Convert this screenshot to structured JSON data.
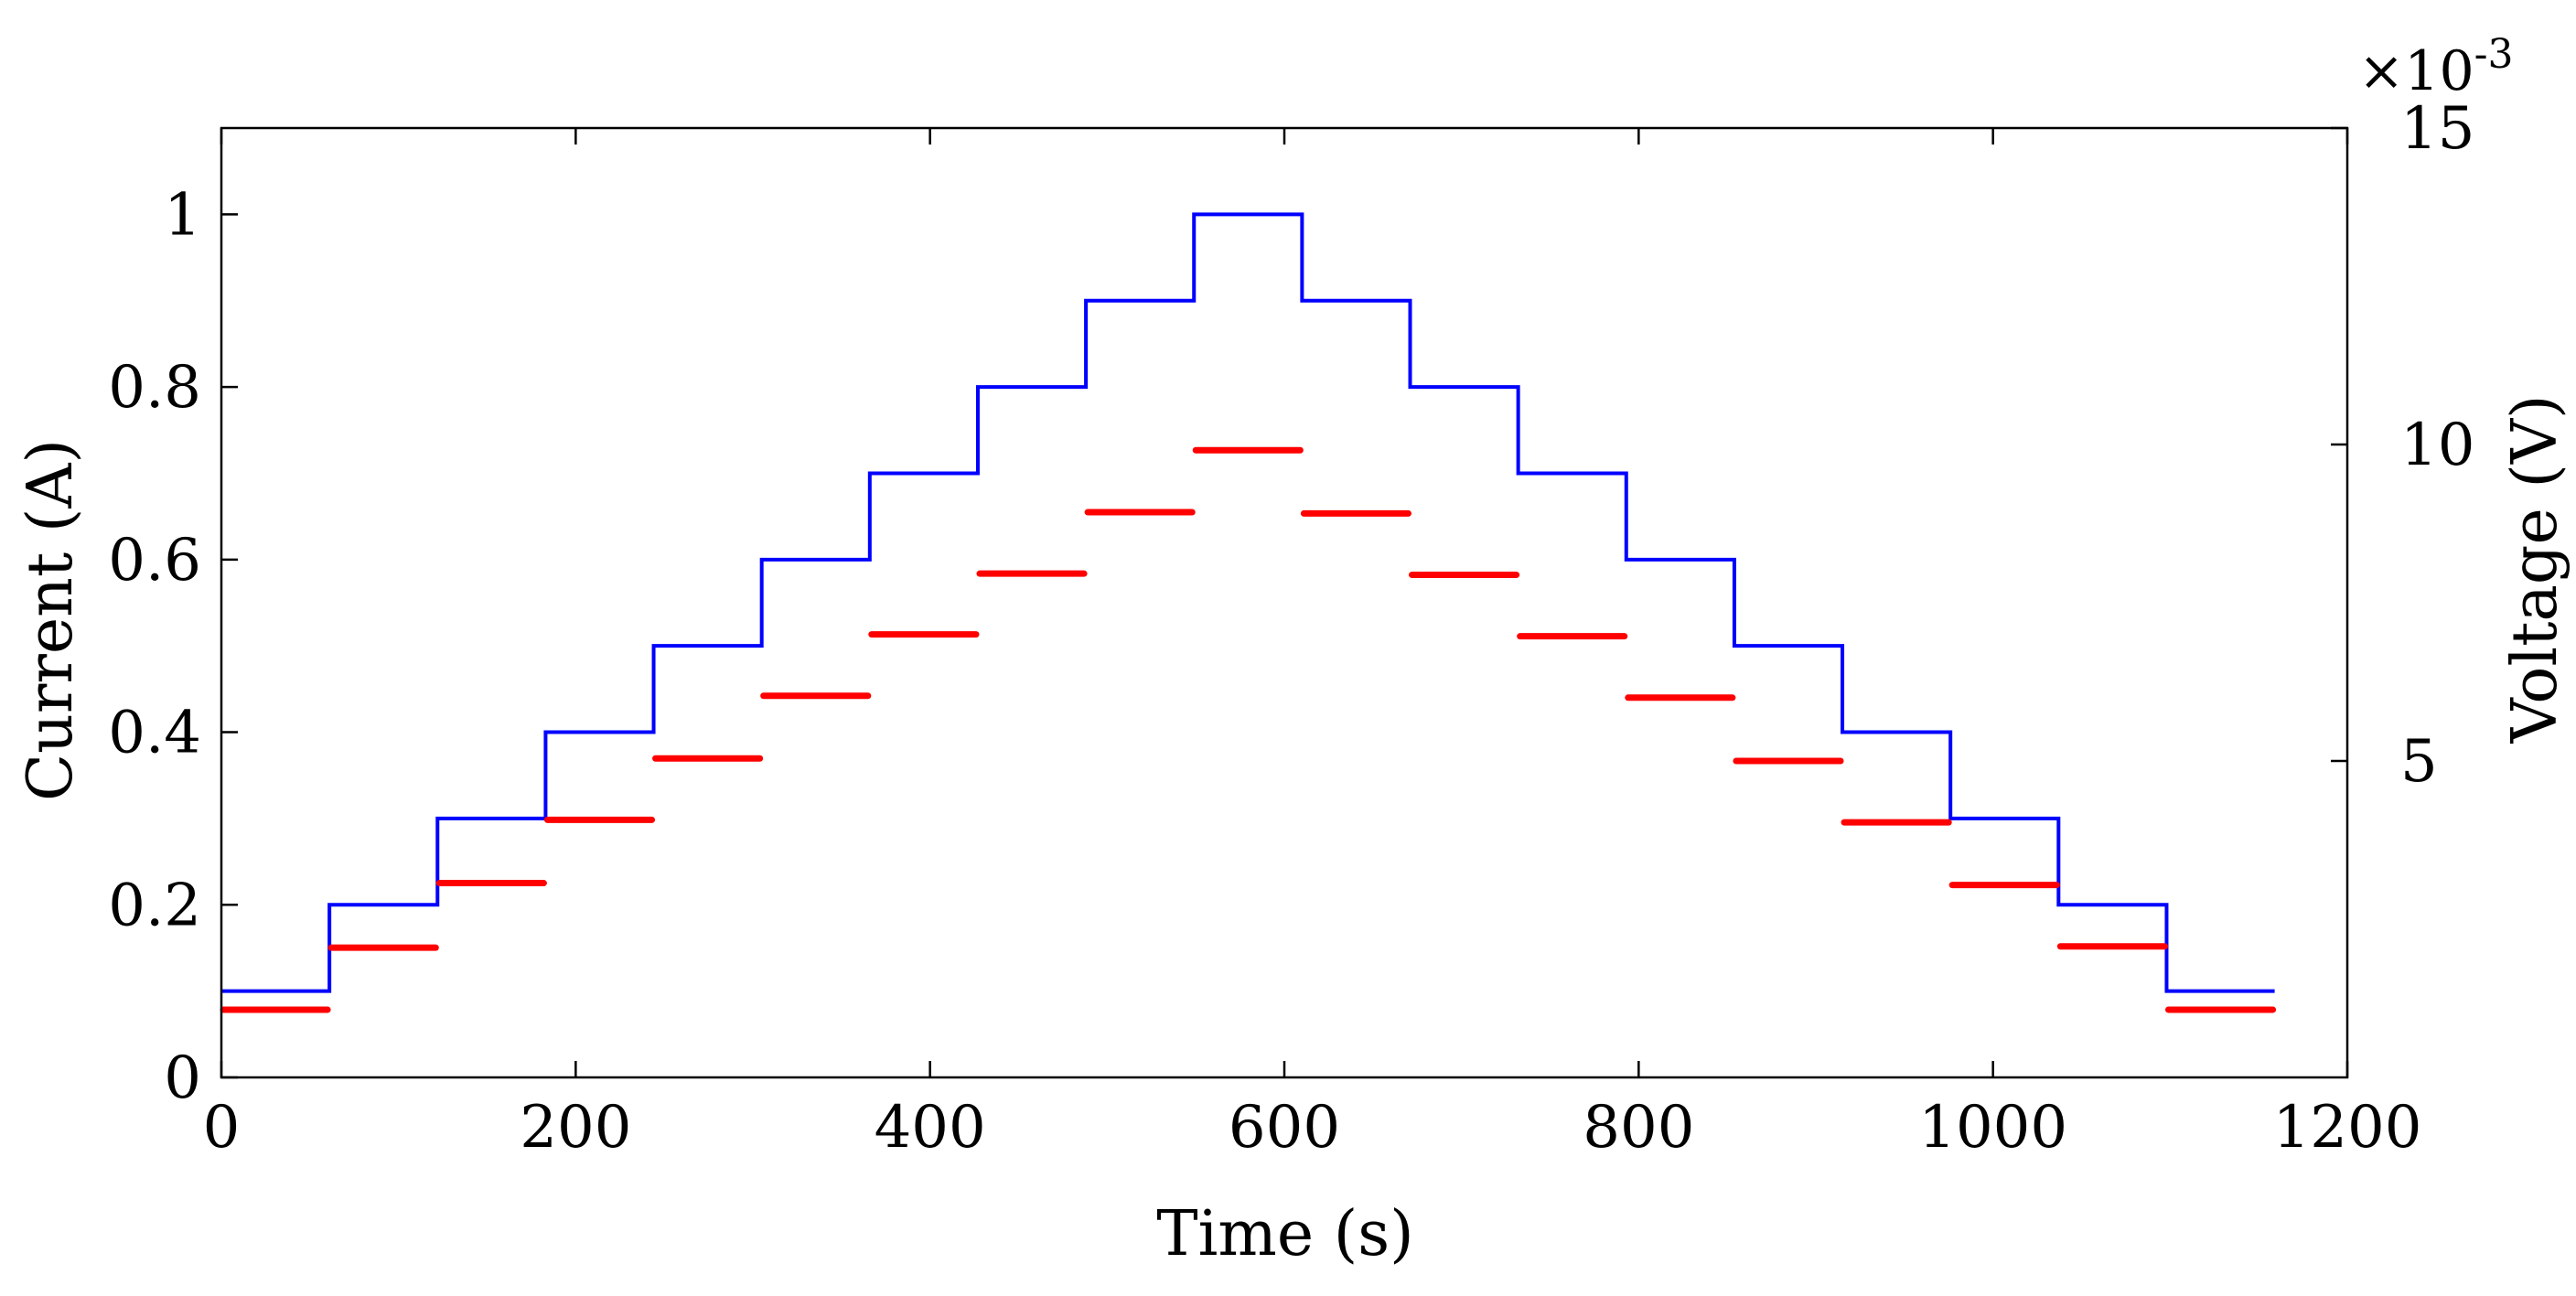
{
  "chart_data": {
    "type": "line",
    "xlabel": "Time (s)",
    "ylabel": "Current (A)",
    "y2label": "Voltage (V)",
    "y2_exponent": "×10-3",
    "x_ticks": [
      "0",
      "200",
      "400",
      "600",
      "800",
      "1000",
      "1200"
    ],
    "y_ticks": [
      "0",
      "0.2",
      "0.4",
      "0.6",
      "0.8",
      "1"
    ],
    "y2_ticks": [
      "5",
      "10",
      "15"
    ],
    "xlim": [
      0,
      1200
    ],
    "ylim": [
      0,
      1.1
    ],
    "y2lim": [
      0,
      15
    ],
    "y2_scale_factor": 0.001,
    "grid": false,
    "colors": {
      "current": "#0000ff",
      "voltage": "#ff0000"
    },
    "series": [
      {
        "axis": "left",
        "style": "step",
        "segments": [
          {
            "x0": 0,
            "x1": 61,
            "y": 0.1
          },
          {
            "x0": 61,
            "x1": 122,
            "y": 0.2
          },
          {
            "x0": 122,
            "x1": 183,
            "y": 0.3
          },
          {
            "x0": 183,
            "x1": 244,
            "y": 0.4
          },
          {
            "x0": 244,
            "x1": 305,
            "y": 0.5
          },
          {
            "x0": 305,
            "x1": 366,
            "y": 0.6
          },
          {
            "x0": 366,
            "x1": 427,
            "y": 0.7
          },
          {
            "x0": 427,
            "x1": 488,
            "y": 0.8
          },
          {
            "x0": 488,
            "x1": 549,
            "y": 0.9
          },
          {
            "x0": 549,
            "x1": 610,
            "y": 1.0
          },
          {
            "x0": 610,
            "x1": 671,
            "y": 0.9
          },
          {
            "x0": 671,
            "x1": 732,
            "y": 0.8
          },
          {
            "x0": 732,
            "x1": 793,
            "y": 0.7
          },
          {
            "x0": 793,
            "x1": 854,
            "y": 0.6
          },
          {
            "x0": 854,
            "x1": 915,
            "y": 0.5
          },
          {
            "x0": 915,
            "x1": 976,
            "y": 0.4
          },
          {
            "x0": 976,
            "x1": 1037,
            "y": 0.3
          },
          {
            "x0": 1037,
            "x1": 1098,
            "y": 0.2
          },
          {
            "x0": 1098,
            "x1": 1159,
            "y": 0.1
          }
        ]
      },
      {
        "axis": "right",
        "style": "segments",
        "segments": [
          {
            "x0": 0,
            "x1": 61,
            "y": 1.07
          },
          {
            "x0": 61,
            "x1": 122,
            "y": 2.05
          },
          {
            "x0": 122,
            "x1": 183,
            "y": 3.07
          },
          {
            "x0": 183,
            "x1": 244,
            "y": 4.07
          },
          {
            "x0": 244,
            "x1": 305,
            "y": 5.04
          },
          {
            "x0": 305,
            "x1": 366,
            "y": 6.03
          },
          {
            "x0": 366,
            "x1": 427,
            "y": 7.0
          },
          {
            "x0": 427,
            "x1": 488,
            "y": 7.96
          },
          {
            "x0": 488,
            "x1": 549,
            "y": 8.93
          },
          {
            "x0": 549,
            "x1": 610,
            "y": 9.91
          },
          {
            "x0": 610,
            "x1": 671,
            "y": 8.91
          },
          {
            "x0": 671,
            "x1": 732,
            "y": 7.94
          },
          {
            "x0": 732,
            "x1": 793,
            "y": 6.97
          },
          {
            "x0": 793,
            "x1": 854,
            "y": 6.0
          },
          {
            "x0": 854,
            "x1": 915,
            "y": 5.0
          },
          {
            "x0": 915,
            "x1": 976,
            "y": 4.03
          },
          {
            "x0": 976,
            "x1": 1037,
            "y": 3.04
          },
          {
            "x0": 1037,
            "x1": 1098,
            "y": 2.07
          },
          {
            "x0": 1098,
            "x1": 1159,
            "y": 1.07
          }
        ]
      }
    ]
  }
}
